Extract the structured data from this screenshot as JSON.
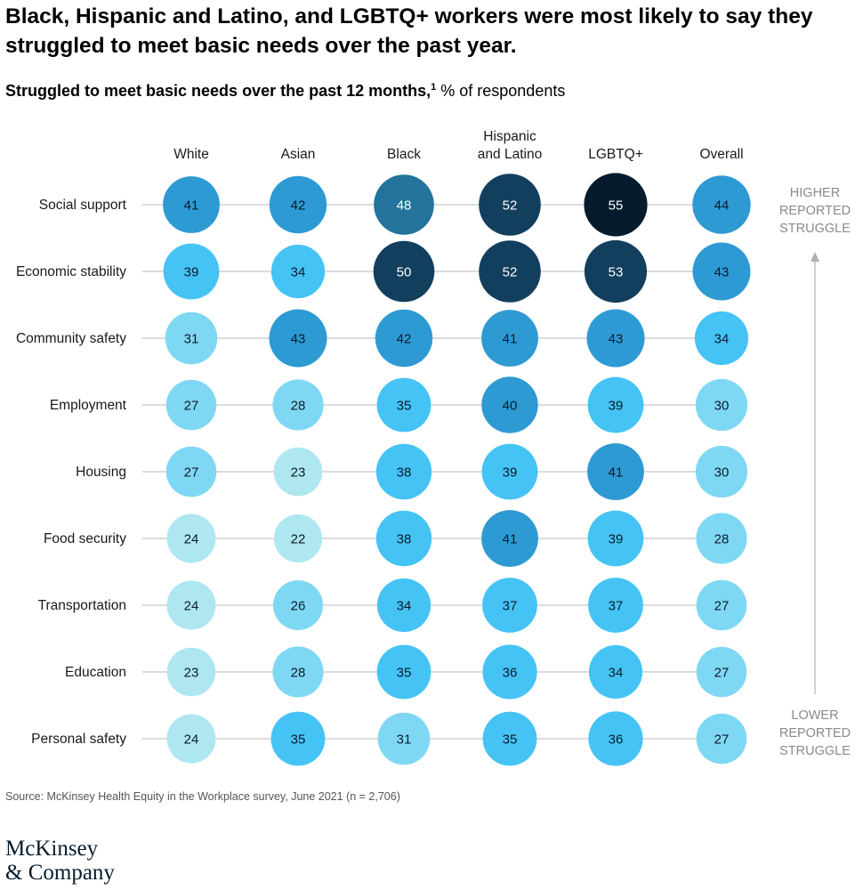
{
  "title": "Black, Hispanic and Latino, and LGBTQ+ workers were most likely to say they struggled to meet basic needs over the past year.",
  "subtitle_bold": "Struggled to meet basic needs over the past 12 months,",
  "subtitle_note": "1",
  "subtitle_rest": " % of respondents",
  "source": "Source: McKinsey Health Equity in the Workplace survey, June 2021 (n = 2,706)",
  "logo_line1": "McKinsey",
  "logo_line2": "& Company",
  "chart_data": {
    "type": "heatmap",
    "columns": [
      [
        "White"
      ],
      [
        "Asian"
      ],
      [
        "Black"
      ],
      [
        "Hispanic",
        "and Latino"
      ],
      [
        "LGBTQ+"
      ],
      [
        "Overall"
      ]
    ],
    "rows": [
      "Social support",
      "Economic stability",
      "Community safety",
      "Employment",
      "Housing",
      "Food security",
      "Transportation",
      "Education",
      "Personal safety"
    ],
    "values": [
      [
        41,
        42,
        48,
        52,
        55,
        44
      ],
      [
        39,
        34,
        50,
        52,
        53,
        43
      ],
      [
        31,
        43,
        42,
        41,
        43,
        34
      ],
      [
        27,
        28,
        35,
        40,
        39,
        30
      ],
      [
        27,
        23,
        38,
        39,
        41,
        30
      ],
      [
        24,
        22,
        38,
        41,
        39,
        28
      ],
      [
        24,
        26,
        34,
        37,
        37,
        27
      ],
      [
        23,
        28,
        35,
        36,
        34,
        27
      ],
      [
        24,
        35,
        31,
        35,
        36,
        27
      ]
    ],
    "scale_top_label": [
      "HIGHER",
      "REPORTED",
      "STRUGGLE"
    ],
    "scale_bottom_label": [
      "LOWER",
      "REPORTED",
      "STRUGGLE"
    ],
    "colors": {
      "low": "#aee7f0",
      "light": "#7fd8f3",
      "mid": "#45c3f5",
      "strong": "#2e9ad3",
      "deep": "#23739c",
      "dark": "#123f5e",
      "darkest": "#061c2e",
      "line": "#b8b8b8",
      "arrow": "#b0b0b0"
    }
  }
}
